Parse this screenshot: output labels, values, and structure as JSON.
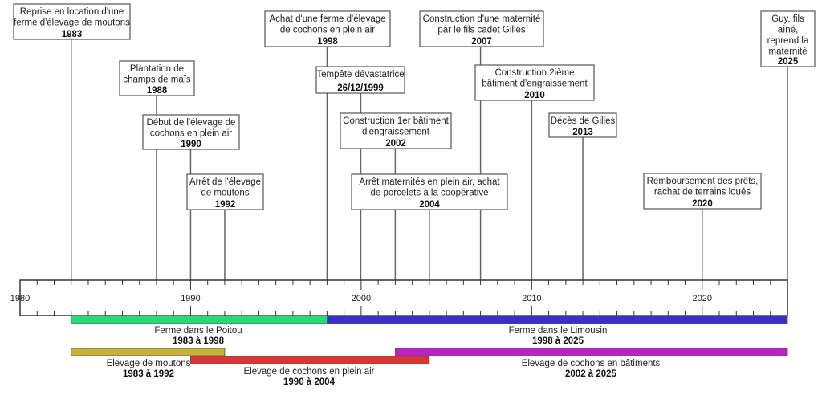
{
  "axis": {
    "start": 1980,
    "end": 2025,
    "labels": [
      "1980",
      "1990",
      "2000",
      "2010",
      "2020"
    ]
  },
  "events": [
    {
      "year": 1983,
      "lines": [
        "Reprise en location d'une",
        "ferme d'élevage de moutons"
      ],
      "date": "1983"
    },
    {
      "year": 1988,
      "lines": [
        "Plantation de",
        "champs de maïs"
      ],
      "date": "1988"
    },
    {
      "year": 1990,
      "lines": [
        "Début de l'élevage de",
        "cochons en plein air"
      ],
      "date": "1990"
    },
    {
      "year": 1992,
      "lines": [
        "Arrêt de l'élevage",
        "de moutons"
      ],
      "date": "1992"
    },
    {
      "year": 1998,
      "lines": [
        "Achat d'une ferme d'élevage",
        "de cochons en plein air"
      ],
      "date": "1998"
    },
    {
      "year": 1999.98,
      "lines": [
        "Tempête dévastatrice"
      ],
      "date": "26/12/1999"
    },
    {
      "year": 2002,
      "lines": [
        "Construction 1er bâtiment",
        "d'engraissement"
      ],
      "date": "2002"
    },
    {
      "year": 2004,
      "lines": [
        "Arrêt maternités en plein air, achat",
        "de porcelets à la coopérative"
      ],
      "date": "2004"
    },
    {
      "year": 2007,
      "lines": [
        "Construction d'une maternité",
        "par le fils cadet Gilles"
      ],
      "date": "2007"
    },
    {
      "year": 2010,
      "lines": [
        "Construction 2ième",
        "bâtiment d'engraissement"
      ],
      "date": "2010"
    },
    {
      "year": 2013,
      "lines": [
        "Décès de Gilles"
      ],
      "date": "2013"
    },
    {
      "year": 2020,
      "lines": [
        "Remboursement des prêts,",
        "rachat de terrains loués"
      ],
      "date": "2020"
    },
    {
      "year": 2025,
      "lines": [
        "Guy, fils",
        "aîné,",
        "reprend la",
        "maternité"
      ],
      "date": "2025"
    }
  ],
  "periods": [
    {
      "label": "Ferme dans le Poitou",
      "range": "1983 à 1998",
      "start": 1983,
      "end": 1998,
      "color": "#22dd77"
    },
    {
      "label": "Ferme dans le Limousin",
      "range": "1998 à 2025",
      "start": 1998,
      "end": 2025,
      "color": "#3a2fc8"
    },
    {
      "label": "Elevage de moutons",
      "range": "1983 à 1992",
      "start": 1983,
      "end": 1992,
      "color": "#c8b23a"
    },
    {
      "label": "Elevage de cochons en plein air",
      "range": "1990 à 2004",
      "start": 1990,
      "end": 2004,
      "color": "#e03434"
    },
    {
      "label": "Elevage de cochons en bâtiments",
      "range": "2002 à 2025",
      "start": 2002,
      "end": 2025,
      "color": "#c020c8"
    }
  ]
}
